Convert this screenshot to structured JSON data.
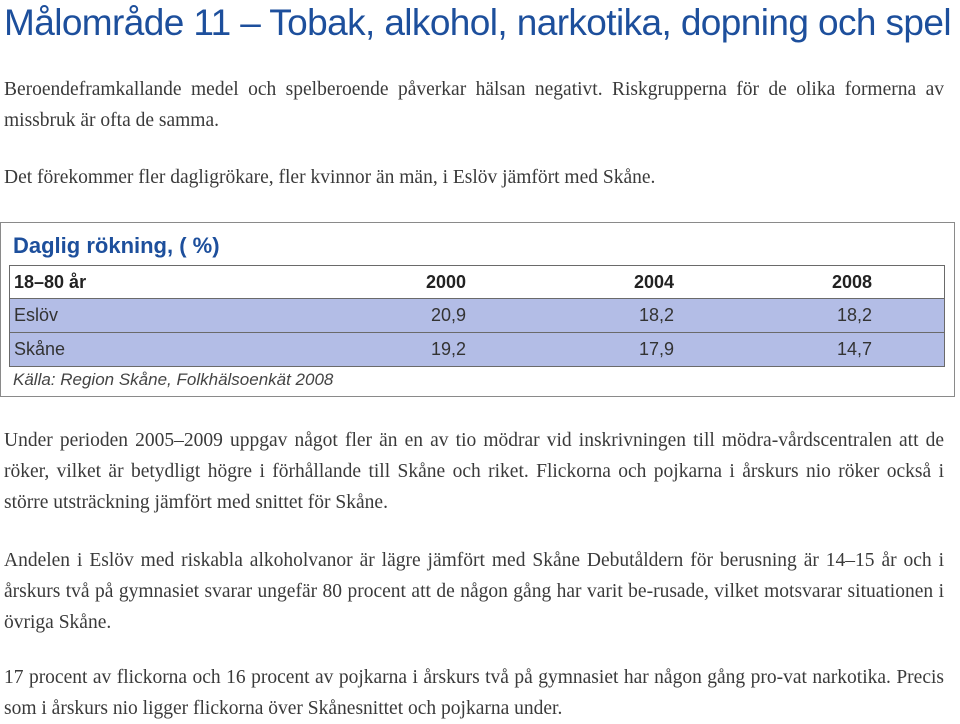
{
  "page": {
    "title": "Målområde 11 – Tobak, alkohol, narkotika, dopning och spel",
    "paragraphs": [
      "Beroendeframkallande medel och spelberoende påverkar hälsan negativt. Riskgrupperna för de olika formerna av missbruk är ofta de samma.",
      "Det förekommer fler dagligrökare, fler kvinnor än män, i Eslöv jämfört med Skåne.",
      "Under perioden 2005–2009 uppgav något fler än en av tio mödrar vid inskrivningen till mödra-vårdscentralen att de röker, vilket är betydligt högre i förhållande till Skåne och riket. Flickorna och pojkarna i årskurs nio röker också i större utsträckning jämfört med snittet för Skåne.",
      "Andelen i Eslöv med riskabla alkoholvanor är lägre jämfört med Skåne Debutåldern för berusning är 14–15 år och i årskurs två på gymnasiet svarar ungefär 80 procent att de någon gång har varit be-rusade, vilket motsvarar situationen i övriga Skåne.",
      "17 procent av flickorna och 16 procent av pojkarna i årskurs två på gymnasiet har någon gång pro-vat narkotika. Precis som i årskurs nio ligger flickorna över Skånesnittet och pojkarna under."
    ]
  },
  "table": {
    "title": "Daglig rökning, ( %)",
    "header": [
      "18–80 år",
      "2000",
      "2004",
      "2008"
    ],
    "rows": [
      [
        "Eslöv",
        "20,9",
        "18,2",
        "18,2"
      ],
      [
        "Skåne",
        "19,2",
        "17,9",
        "14,7"
      ]
    ],
    "source": "Källa: Region Skåne, Folkhälsoenkät 2008",
    "colors": {
      "title": "#1d4f9c",
      "row_fill": "#b3bde6"
    }
  }
}
